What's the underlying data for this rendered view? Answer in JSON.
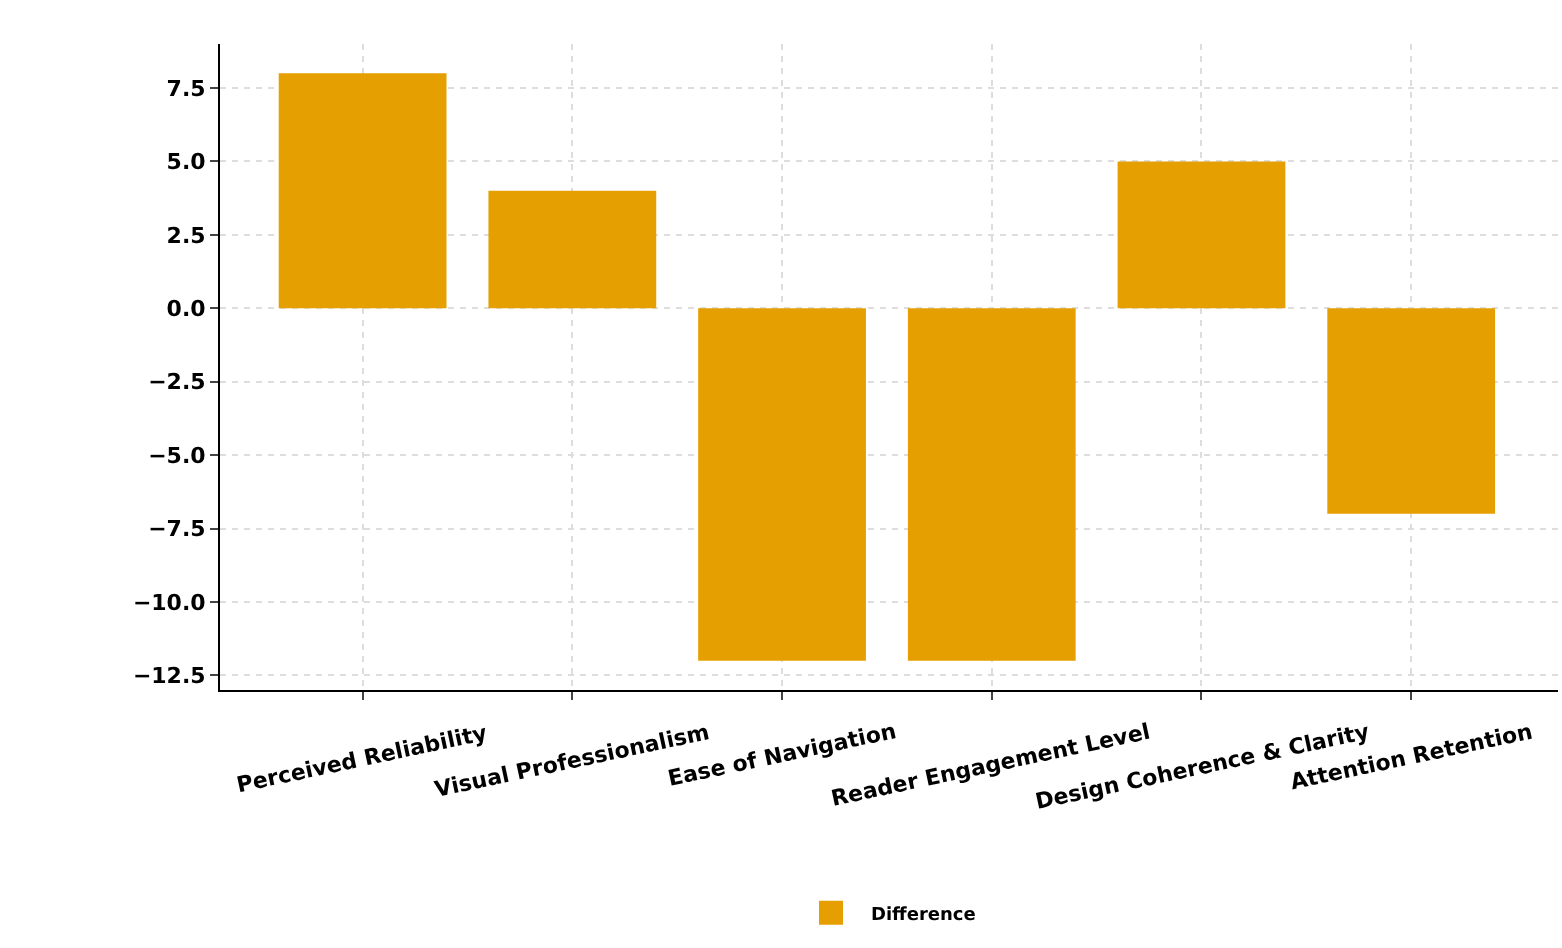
{
  "chart_data": {
    "type": "bar",
    "categories": [
      "Perceived Reliability",
      "Visual Professionalism",
      "Ease of Navigation",
      "Reader Engagement Level",
      "Design Coherence & Clarity",
      "Attention Retention"
    ],
    "series": [
      {
        "name": "Difference",
        "color": "#e69f00",
        "values": [
          8,
          4,
          -12,
          -12,
          5,
          -7
        ]
      }
    ],
    "ylim": [
      -13,
      9
    ],
    "yticks": [
      {
        "value": -12.5,
        "label": "−12.5"
      },
      {
        "value": -10,
        "label": "−10.0"
      },
      {
        "value": -7.5,
        "label": "−7.5"
      },
      {
        "value": -5,
        "label": "−5.0"
      },
      {
        "value": -2.5,
        "label": "−2.5"
      },
      {
        "value": 0,
        "label": "0.0"
      },
      {
        "value": 2.5,
        "label": "2.5"
      },
      {
        "value": 5,
        "label": "5.0"
      },
      {
        "value": 7.5,
        "label": "7.5"
      }
    ],
    "grid": true,
    "legend": "bottom"
  }
}
